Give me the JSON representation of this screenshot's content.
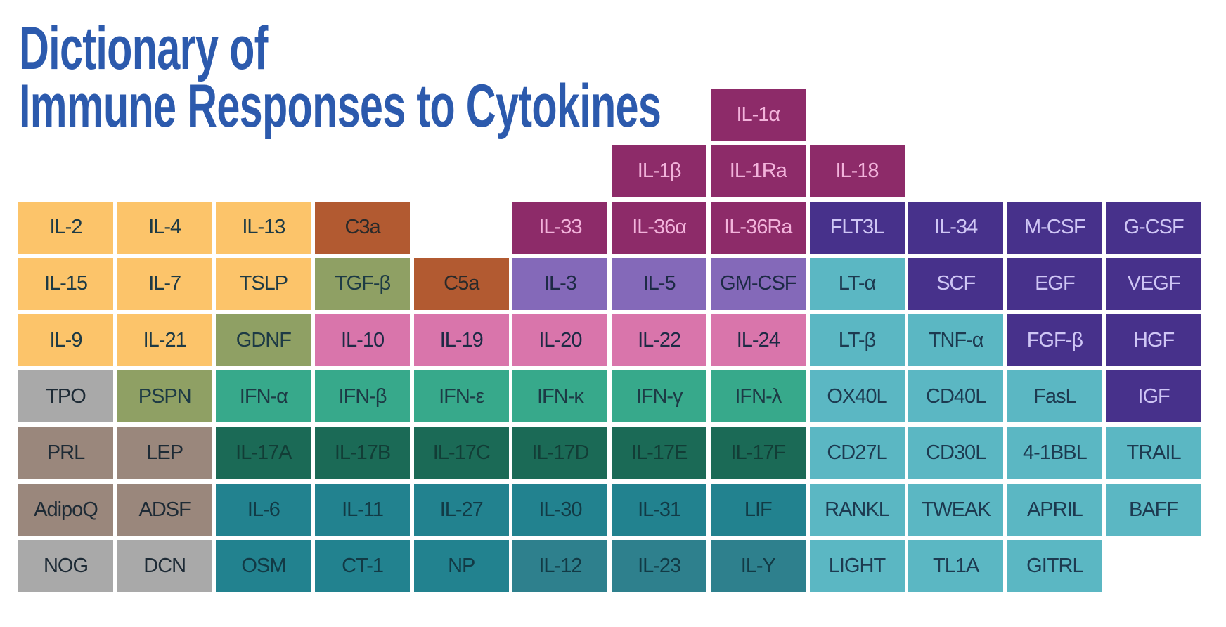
{
  "title": {
    "line1": "Dictionary of",
    "line2": "Immune Responses to Cytokines"
  },
  "groups": {
    "yellow": {
      "bg": "#fcc46a",
      "fg": "#1d3a45"
    },
    "brown": {
      "bg": "#b25a31",
      "fg": "#2a2a2a"
    },
    "olive": {
      "bg": "#8fa064",
      "fg": "#1d3a45"
    },
    "magenta": {
      "bg": "#8d2b69",
      "fg": "#f2b3db"
    },
    "indigo": {
      "bg": "#47318b",
      "fg": "#cfc6f5"
    },
    "lavender": {
      "bg": "#8469b9",
      "fg": "#1d2a45"
    },
    "pink": {
      "bg": "#d975ab",
      "fg": "#1d2a45"
    },
    "ifn": {
      "bg": "#37a98b",
      "fg": "#1d3a45"
    },
    "il17": {
      "bg": "#1b6a56",
      "fg": "#123d36"
    },
    "il6": {
      "bg": "#22828f",
      "fg": "#123a45"
    },
    "il12": {
      "bg": "#2e808d",
      "fg": "#123a45"
    },
    "tnf": {
      "bg": "#5bb7c3",
      "fg": "#1d3a50"
    },
    "gray": {
      "bg": "#a9a9a9",
      "fg": "#1d2a35"
    },
    "taupe": {
      "bg": "#9a877c",
      "fg": "#1d2a35"
    }
  },
  "rows": [
    [
      null,
      null,
      null,
      null,
      null,
      null,
      null,
      {
        "label": "IL-1α",
        "group": "magenta"
      },
      null,
      null,
      null,
      null
    ],
    [
      null,
      null,
      null,
      null,
      null,
      null,
      {
        "label": "IL-1β",
        "group": "magenta"
      },
      {
        "label": "IL-1Ra",
        "group": "magenta"
      },
      {
        "label": "IL-18",
        "group": "magenta"
      },
      null,
      null,
      null
    ],
    [
      {
        "label": "IL-2",
        "group": "yellow"
      },
      {
        "label": "IL-4",
        "group": "yellow"
      },
      {
        "label": "IL-13",
        "group": "yellow"
      },
      {
        "label": "C3a",
        "group": "brown"
      },
      null,
      {
        "label": "IL-33",
        "group": "magenta"
      },
      {
        "label": "IL-36α",
        "group": "magenta"
      },
      {
        "label": "IL-36Ra",
        "group": "magenta"
      },
      {
        "label": "FLT3L",
        "group": "indigo"
      },
      {
        "label": "IL-34",
        "group": "indigo"
      },
      {
        "label": "M-CSF",
        "group": "indigo"
      },
      {
        "label": "G-CSF",
        "group": "indigo"
      }
    ],
    [
      {
        "label": "IL-15",
        "group": "yellow"
      },
      {
        "label": "IL-7",
        "group": "yellow"
      },
      {
        "label": "TSLP",
        "group": "yellow"
      },
      {
        "label": "TGF-β",
        "group": "olive"
      },
      {
        "label": "C5a",
        "group": "brown"
      },
      {
        "label": "IL-3",
        "group": "lavender"
      },
      {
        "label": "IL-5",
        "group": "lavender"
      },
      {
        "label": "GM-CSF",
        "group": "lavender"
      },
      {
        "label": "LT-α",
        "group": "tnf"
      },
      {
        "label": "SCF",
        "group": "indigo"
      },
      {
        "label": "EGF",
        "group": "indigo"
      },
      {
        "label": "VEGF",
        "group": "indigo"
      }
    ],
    [
      {
        "label": "IL-9",
        "group": "yellow"
      },
      {
        "label": "IL-21",
        "group": "yellow"
      },
      {
        "label": "GDNF",
        "group": "olive"
      },
      {
        "label": "IL-10",
        "group": "pink"
      },
      {
        "label": "IL-19",
        "group": "pink"
      },
      {
        "label": "IL-20",
        "group": "pink"
      },
      {
        "label": "IL-22",
        "group": "pink"
      },
      {
        "label": "IL-24",
        "group": "pink"
      },
      {
        "label": "LT-β",
        "group": "tnf"
      },
      {
        "label": "TNF-α",
        "group": "tnf"
      },
      {
        "label": "FGF-β",
        "group": "indigo"
      },
      {
        "label": "HGF",
        "group": "indigo"
      }
    ],
    [
      {
        "label": "TPO",
        "group": "gray"
      },
      {
        "label": "PSPN",
        "group": "olive"
      },
      {
        "label": "IFN-α",
        "group": "ifn"
      },
      {
        "label": "IFN-β",
        "group": "ifn"
      },
      {
        "label": "IFN-ε",
        "group": "ifn"
      },
      {
        "label": "IFN-κ",
        "group": "ifn"
      },
      {
        "label": "IFN-γ",
        "group": "ifn"
      },
      {
        "label": "IFN-λ",
        "group": "ifn"
      },
      {
        "label": "OX40L",
        "group": "tnf"
      },
      {
        "label": "CD40L",
        "group": "tnf"
      },
      {
        "label": "FasL",
        "group": "tnf"
      },
      {
        "label": "IGF",
        "group": "indigo"
      }
    ],
    [
      {
        "label": "PRL",
        "group": "taupe"
      },
      {
        "label": "LEP",
        "group": "taupe"
      },
      {
        "label": "IL-17A",
        "group": "il17"
      },
      {
        "label": "IL-17B",
        "group": "il17"
      },
      {
        "label": "IL-17C",
        "group": "il17"
      },
      {
        "label": "IL-17D",
        "group": "il17"
      },
      {
        "label": "IL-17E",
        "group": "il17"
      },
      {
        "label": "IL-17F",
        "group": "il17"
      },
      {
        "label": "CD27L",
        "group": "tnf"
      },
      {
        "label": "CD30L",
        "group": "tnf"
      },
      {
        "label": "4-1BBL",
        "group": "tnf"
      },
      {
        "label": "TRAIL",
        "group": "tnf"
      }
    ],
    [
      {
        "label": "AdipoQ",
        "group": "taupe"
      },
      {
        "label": "ADSF",
        "group": "taupe"
      },
      {
        "label": "IL-6",
        "group": "il6"
      },
      {
        "label": "IL-11",
        "group": "il6"
      },
      {
        "label": "IL-27",
        "group": "il6"
      },
      {
        "label": "IL-30",
        "group": "il6"
      },
      {
        "label": "IL-31",
        "group": "il6"
      },
      {
        "label": "LIF",
        "group": "il6"
      },
      {
        "label": "RANKL",
        "group": "tnf"
      },
      {
        "label": "TWEAK",
        "group": "tnf"
      },
      {
        "label": "APRIL",
        "group": "tnf"
      },
      {
        "label": "BAFF",
        "group": "tnf"
      }
    ],
    [
      {
        "label": "NOG",
        "group": "gray"
      },
      {
        "label": "DCN",
        "group": "gray"
      },
      {
        "label": "OSM",
        "group": "il6"
      },
      {
        "label": "CT-1",
        "group": "il6"
      },
      {
        "label": "NP",
        "group": "il6"
      },
      {
        "label": "IL-12",
        "group": "il12"
      },
      {
        "label": "IL-23",
        "group": "il12"
      },
      {
        "label": "IL-Y",
        "group": "il12"
      },
      {
        "label": "LIGHT",
        "group": "tnf"
      },
      {
        "label": "TL1A",
        "group": "tnf"
      },
      {
        "label": "GITRL",
        "group": "tnf"
      },
      null
    ]
  ]
}
